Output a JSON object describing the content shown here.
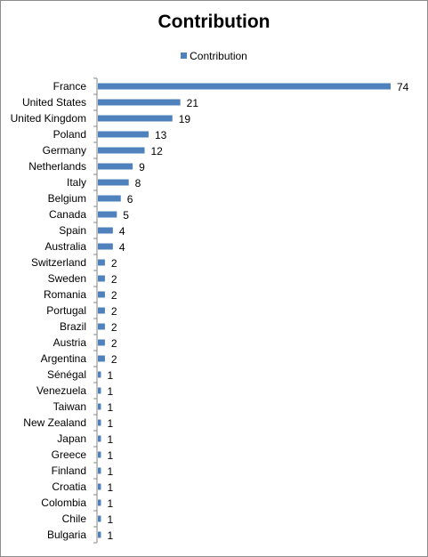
{
  "chart_data": {
    "type": "bar",
    "orientation": "horizontal",
    "title": "Contribution",
    "legend": {
      "position": "top",
      "entries": [
        "Contribution"
      ]
    },
    "bar_color": "#4f81bd",
    "grid": false,
    "xlim": [
      0,
      74
    ],
    "categories": [
      "France",
      "United States",
      "United Kingdom",
      "Poland",
      "Germany",
      "Netherlands",
      "Italy",
      "Belgium",
      "Canada",
      "Spain",
      "Australia",
      "Switzerland",
      "Sweden",
      "Romania",
      "Portugal",
      "Brazil",
      "Austria",
      "Argentina",
      "Sénégal",
      "Venezuela",
      "Taiwan",
      "New Zealand",
      "Japan",
      "Greece",
      "Finland",
      "Croatia",
      "Colombia",
      "Chile",
      "Bulgaria"
    ],
    "series": [
      {
        "name": "Contribution",
        "values": [
          74,
          21,
          19,
          13,
          12,
          9,
          8,
          6,
          5,
          4,
          4,
          2,
          2,
          2,
          2,
          2,
          2,
          2,
          1,
          1,
          1,
          1,
          1,
          1,
          1,
          1,
          1,
          1,
          1
        ]
      }
    ]
  }
}
